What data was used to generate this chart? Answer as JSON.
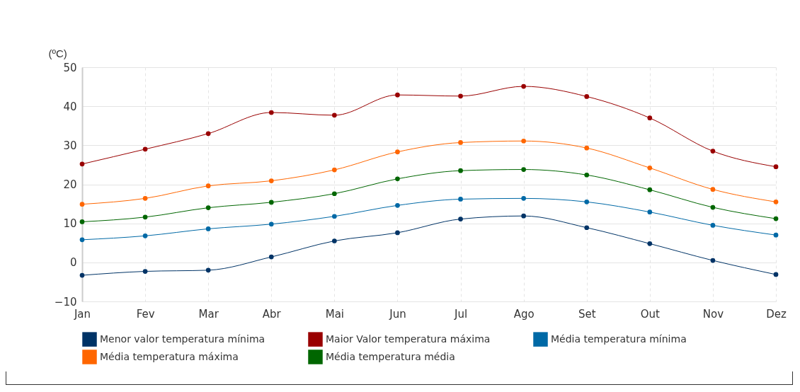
{
  "chart_data": {
    "type": "line",
    "ylabel": "(ºC)",
    "categories": [
      "Jan",
      "Fev",
      "Mar",
      "Abr",
      "Mai",
      "Jun",
      "Jul",
      "Ago",
      "Set",
      "Out",
      "Nov",
      "Dez"
    ],
    "series": [
      {
        "name": "Menor valor temperatura mínima",
        "color": "#003366",
        "values": [
          -3.3,
          -2.3,
          -2.0,
          1.4,
          5.5,
          7.6,
          11.1,
          11.9,
          8.9,
          4.8,
          0.5,
          -3.1
        ]
      },
      {
        "name": "Maior Valor temperatura máxima",
        "color": "#990000",
        "values": [
          25.2,
          29.0,
          33.0,
          38.4,
          37.7,
          42.9,
          42.6,
          45.1,
          42.5,
          37.0,
          28.5,
          24.5
        ]
      },
      {
        "name": "Média temperatura mínima",
        "color": "#0069a6",
        "values": [
          5.8,
          6.8,
          8.6,
          9.8,
          11.8,
          14.6,
          16.2,
          16.4,
          15.5,
          12.9,
          9.5,
          7.0
        ]
      },
      {
        "name": "Média temperatura máxima",
        "color": "#ff6600",
        "values": [
          14.9,
          16.4,
          19.6,
          20.9,
          23.7,
          28.3,
          30.7,
          31.1,
          29.3,
          24.2,
          18.7,
          15.5
        ]
      },
      {
        "name": "Média temperatura média",
        "color": "#006600",
        "values": [
          10.4,
          11.6,
          14.0,
          15.4,
          17.6,
          21.4,
          23.5,
          23.8,
          22.4,
          18.6,
          14.1,
          11.2
        ]
      }
    ],
    "ylim": [
      -10,
      50
    ],
    "yticks": [
      -10,
      0,
      10,
      20,
      30,
      40,
      50
    ],
    "grid": true,
    "legend": "bottom",
    "marker": "circle",
    "line_style": "solid"
  }
}
